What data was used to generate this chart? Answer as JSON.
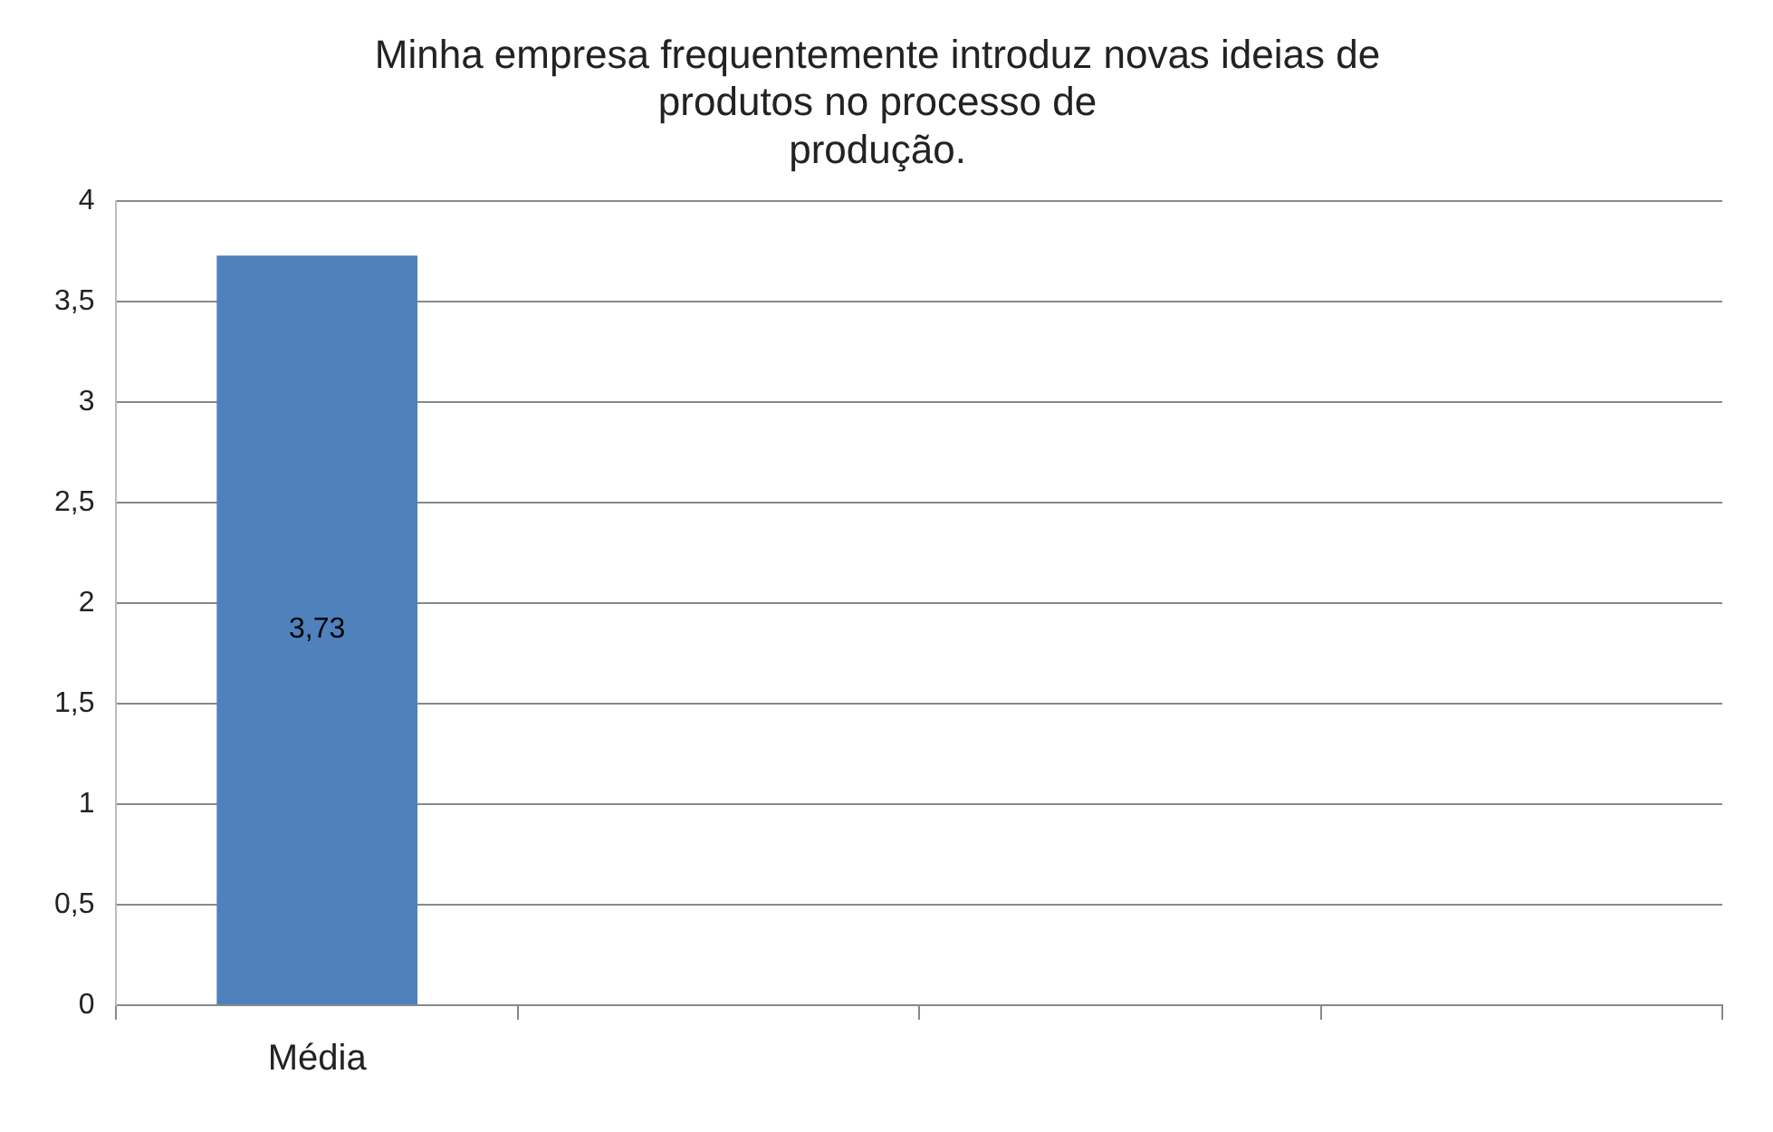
{
  "chart_data": {
    "type": "bar",
    "title": "Minha empresa frequentemente introduz novas ideias de\nprodutos no processo de\nprodução.",
    "categories": [
      "Média",
      null,
      null,
      null
    ],
    "values": [
      3.73,
      null,
      null,
      null
    ],
    "value_labels": [
      "3,73",
      null,
      null,
      null
    ],
    "color": "#4f81bd",
    "ylim": [
      0,
      4
    ],
    "yticks": [
      0,
      {
        "value": 0.5,
        "label": "0,5"
      },
      1,
      {
        "value": 1.5,
        "label": "1,5"
      },
      2,
      {
        "value": 2.5,
        "label": "2,5"
      },
      3,
      {
        "value": 3.5,
        "label": "3,5"
      },
      4
    ],
    "grid": "y",
    "legend": false
  }
}
